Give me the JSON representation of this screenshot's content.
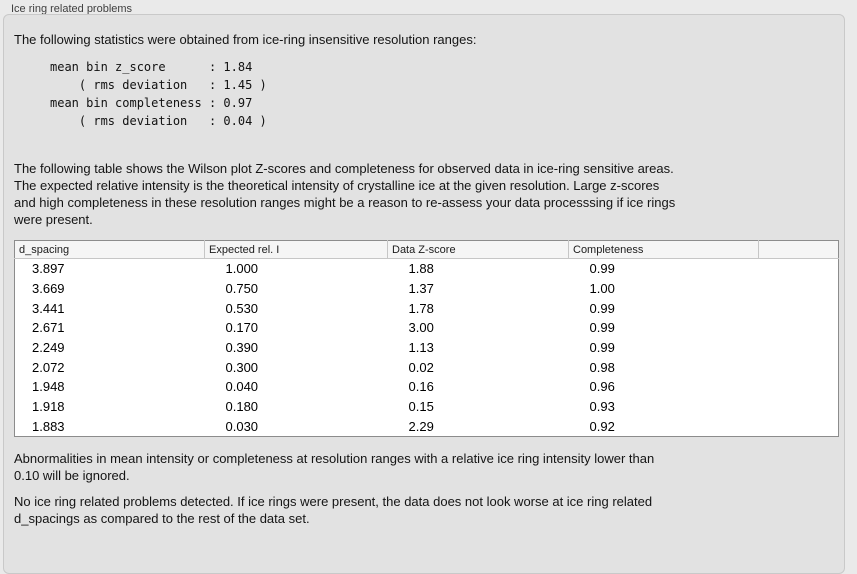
{
  "panel": {
    "title": "Ice ring related problems"
  },
  "stats": {
    "intro": "The following statistics were obtained from ice-ring insensitive resolution ranges:",
    "block": "mean bin z_score      : 1.84\n    ( rms deviation   : 1.45 )\nmean bin completeness : 0.97\n    ( rms deviation   : 0.04 )",
    "mean_bin_z_score": "1.84",
    "z_score_rms_deviation": "1.45",
    "mean_bin_completeness": "0.97",
    "completeness_rms_deviation": "0.04"
  },
  "table_intro": "The following table shows the Wilson plot Z-scores and completeness for observed data in ice-ring sensitive areas.\nThe expected relative intensity is the theoretical intensity of crystalline ice at the given resolution. Large z-scores\nand high completeness in these resolution ranges might be a reason to re-assess your data processsing if ice rings\nwere present.",
  "table": {
    "headers": [
      "d_spacing",
      "Expected rel. I",
      "Data Z-score",
      "Completeness",
      ""
    ],
    "rows": [
      [
        "3.897",
        "1.000",
        "1.88",
        "0.99"
      ],
      [
        "3.669",
        "0.750",
        "1.37",
        "1.00"
      ],
      [
        "3.441",
        "0.530",
        "1.78",
        "0.99"
      ],
      [
        "2.671",
        "0.170",
        "3.00",
        "0.99"
      ],
      [
        "2.249",
        "0.390",
        "1.13",
        "0.99"
      ],
      [
        "2.072",
        "0.300",
        "0.02",
        "0.98"
      ],
      [
        "1.948",
        "0.040",
        "0.16",
        "0.96"
      ],
      [
        "1.918",
        "0.180",
        "0.15",
        "0.93"
      ],
      [
        "1.883",
        "0.030",
        "2.29",
        "0.92"
      ]
    ]
  },
  "notes": {
    "ignore_note": "Abnormalities in mean intensity or completeness at resolution ranges with a relative ice ring intensity lower than\n0.10 will be ignored.",
    "conclusion": "No ice ring related problems detected. If ice rings were present, the data does not look worse at ice ring related\nd_spacings as compared to the rest of the data set."
  },
  "colors": {
    "page_background": "#eaeaea",
    "groupbox_background": "#e2e2e2",
    "groupbox_border": "#c9c9c9",
    "table_border": "#8c8c8c",
    "table_header_background": "#f5f5f5"
  }
}
